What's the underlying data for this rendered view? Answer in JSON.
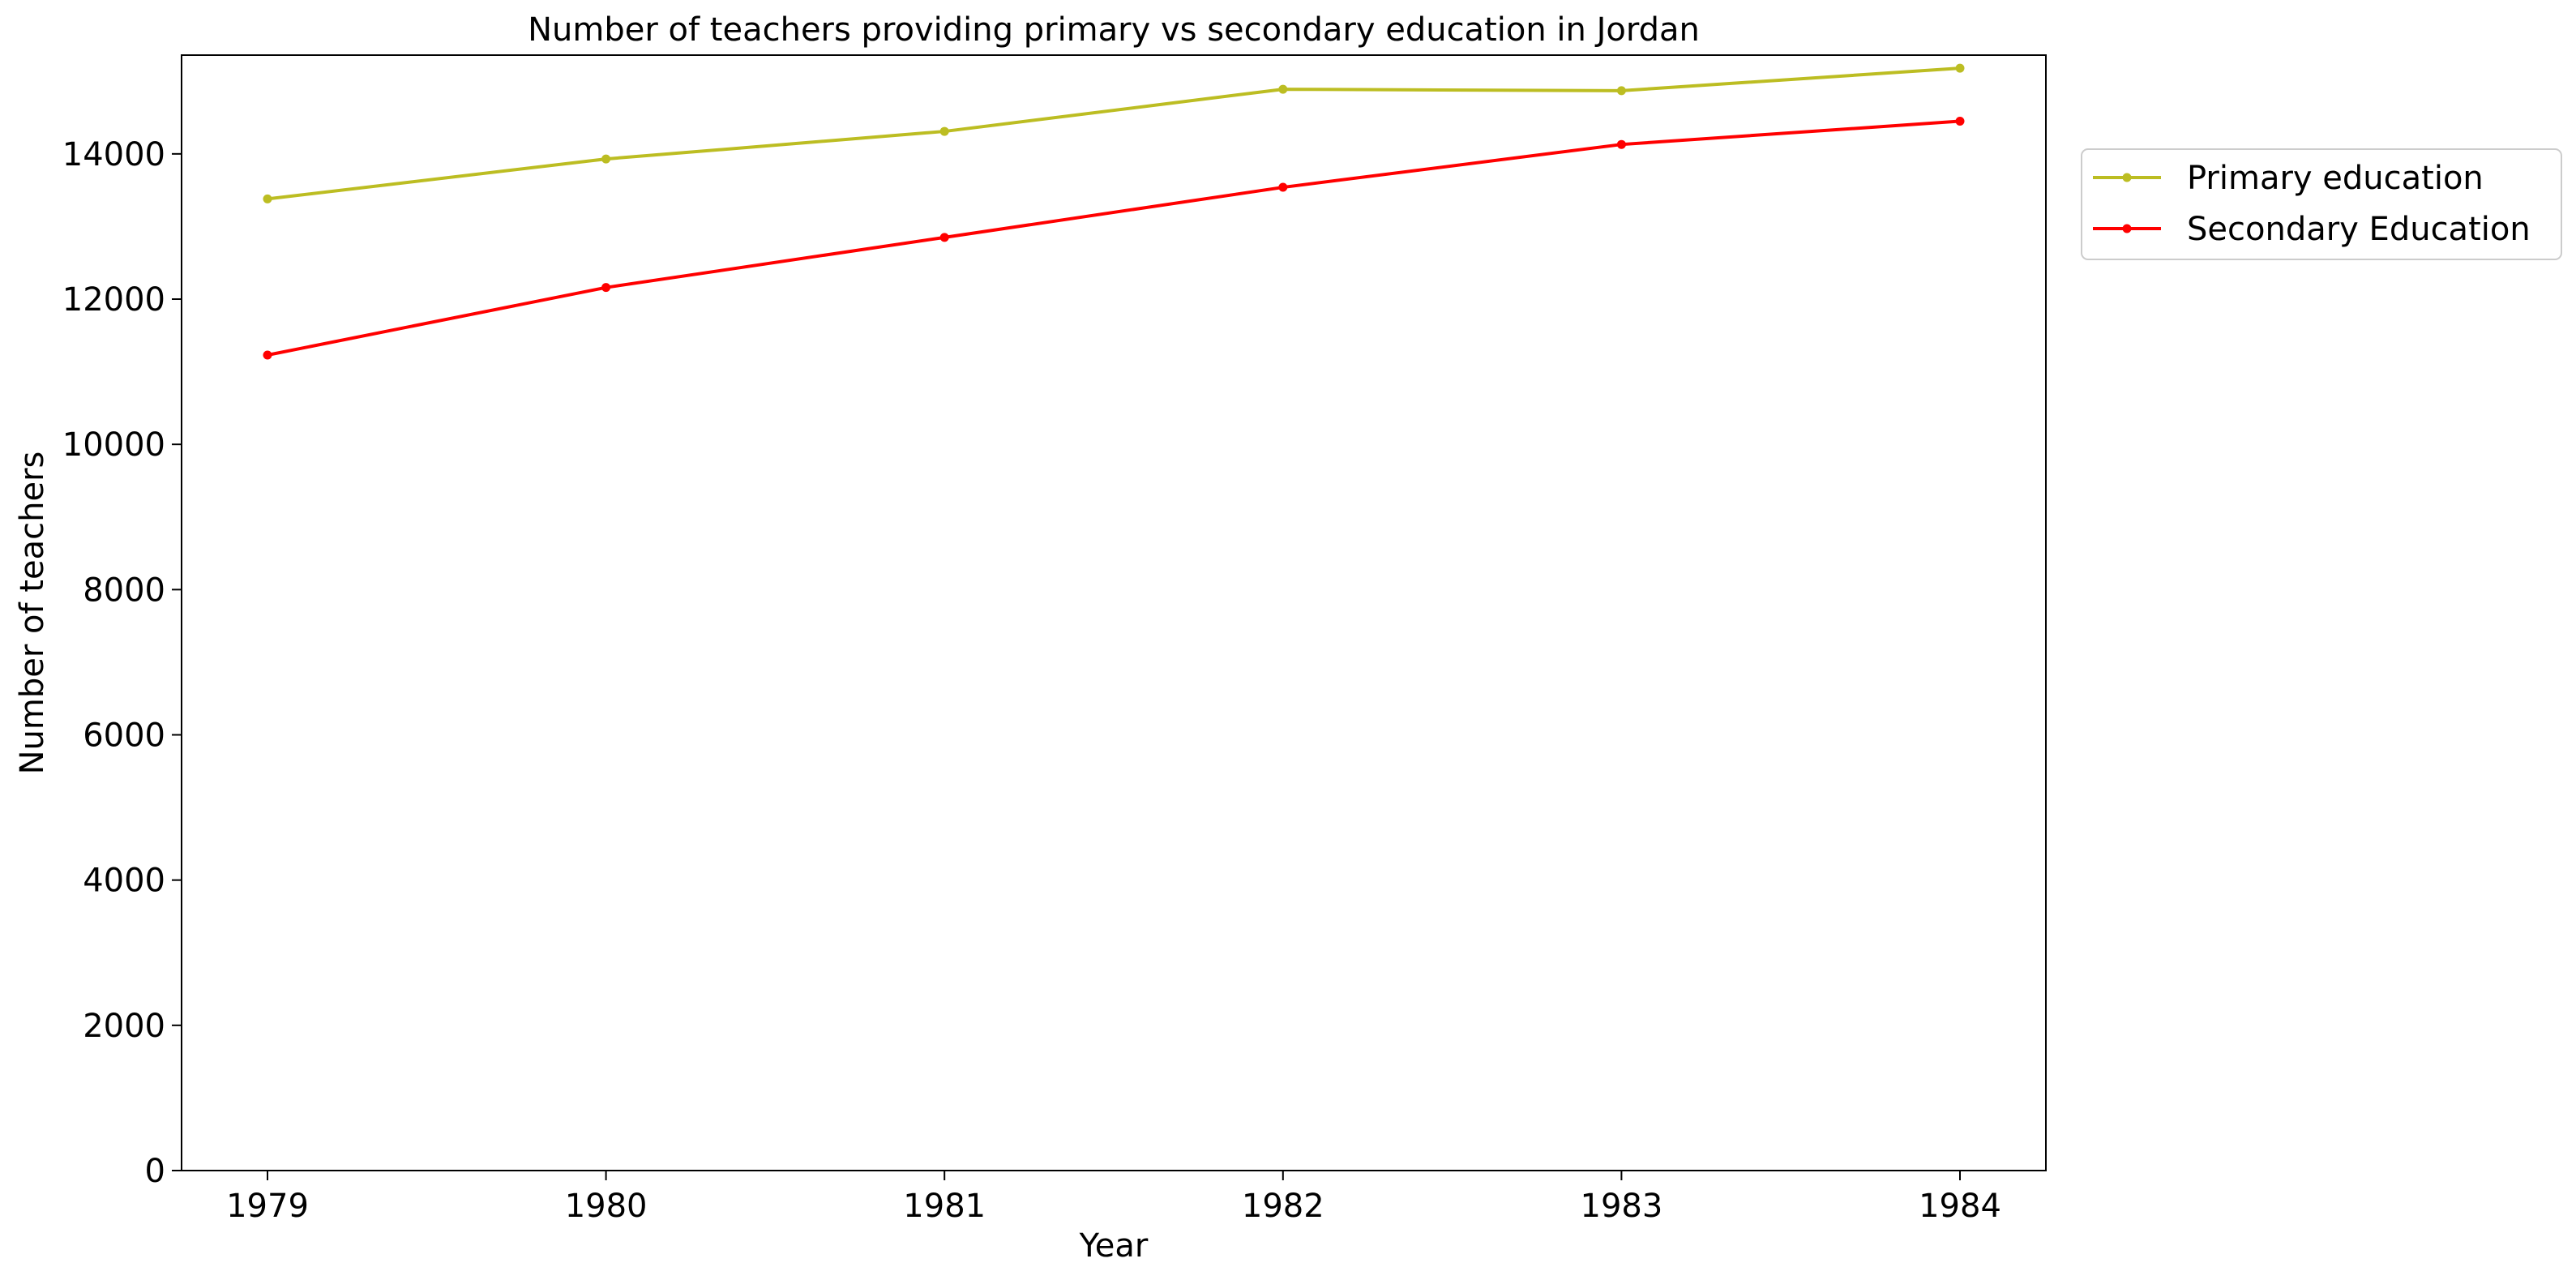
{
  "chart_data": {
    "type": "line",
    "title": "Number of teachers providing primary vs secondary education in Jordan",
    "xlabel": "Year",
    "ylabel": "Number of teachers",
    "categories": [
      "1979",
      "1980",
      "1981",
      "1982",
      "1983",
      "1984"
    ],
    "yticks": [
      "0",
      "2000",
      "4000",
      "6000",
      "8000",
      "10000",
      "12000",
      "14000"
    ],
    "ylim": [
      0,
      15360
    ],
    "series": [
      {
        "name": "Primary education",
        "color": "#bcbd22",
        "values": [
          13380,
          13930,
          14310,
          14890,
          14870,
          15180
        ]
      },
      {
        "name": "Secondary Education",
        "color": "#ff0000",
        "values": [
          11230,
          12160,
          12850,
          13540,
          14130,
          14450
        ]
      }
    ],
    "grid": false,
    "legend_position": "outside-right-top"
  }
}
